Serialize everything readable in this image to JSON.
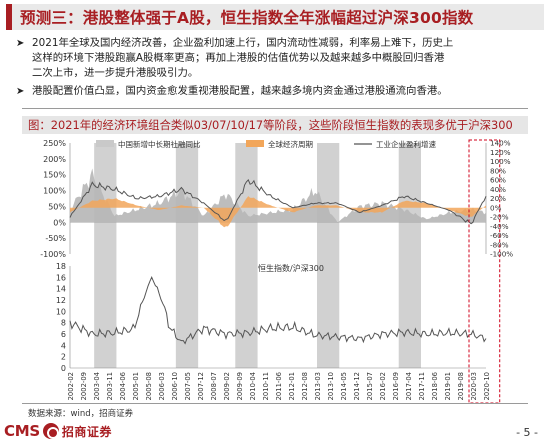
{
  "slide": {
    "title": "预测三：港股整体强于A股，恒生指数全年涨幅超过沪深300指数",
    "bullets": [
      {
        "lines": [
          "2021年全球及国内经济改善，企业盈利加速上行，国内流动性减弱，利率易上难下，历史上",
          "这样的环境下港股跑赢A股概率更高；再加上港股的估值优势以及越来越多中概股回归香港",
          "二次上市，进一步提升港股吸引力。"
        ]
      },
      {
        "lines": [
          "港股配置价值凸显，国内资金愈发重视港股配置，越来越多境内资金通过港股通流向香港。"
        ]
      }
    ],
    "bullet_icon": "arrow-right-icon",
    "chart_title": "图：2021年的经济环境组合类似03/07/10/17等阶段，这些阶段恒生指数的表现多优于沪深300",
    "source": "数据来源：wind，招商证券",
    "page_number": "- 5 -",
    "logo": {
      "text": "CMS",
      "name": "招商证券",
      "icon": "cms-emblem-icon"
    },
    "colors": {
      "accent": "#a81e22",
      "grey_band": "#c9c9c9",
      "orange_band": "#f2a65a",
      "area": "#b6b6b6",
      "line": "#555555",
      "highlight": "#d0021b"
    }
  },
  "chart_data": [
    {
      "type": "area",
      "legend": [
        "中国新增中长期社融同比",
        "全球经济周期",
        "工业企业盈利增速"
      ],
      "legend_placement": "top",
      "y_left_ticks": [
        "250%",
        "200%",
        "150%",
        "100%",
        "50%",
        "0%",
        "-50%",
        "-100%"
      ],
      "y_left_range": [
        -100,
        250
      ],
      "y_right_ticks": [
        "140%",
        "120%",
        "100%",
        "80%",
        "60%",
        "40%",
        "20%",
        "0%",
        "-20%",
        "-40%",
        "-60%",
        "-80%",
        "-100%"
      ],
      "y_right_range": [
        -100,
        140
      ],
      "shaded_periods": [
        [
          "2003-03",
          "2004-03"
        ],
        [
          "2006-11",
          "2007-11"
        ],
        [
          "2009-07",
          "2010-07"
        ],
        [
          "2013-03",
          "2014-03"
        ],
        [
          "2016-11",
          "2017-11"
        ]
      ],
      "highlight_period": [
        "2020-03",
        "2020-12"
      ],
      "x": [
        "2002-02",
        "2003-02",
        "2004-02",
        "2005-02",
        "2006-02",
        "2007-02",
        "2008-02",
        "2009-02",
        "2010-02",
        "2011-02",
        "2012-02",
        "2013-02",
        "2014-02",
        "2015-02",
        "2016-02",
        "2017-02",
        "2018-02",
        "2019-02",
        "2020-02",
        "2020-10"
      ],
      "series": [
        {
          "name": "中国新增中长期社融同比",
          "values": [
            40,
            150,
            20,
            40,
            60,
            100,
            20,
            90,
            20,
            30,
            40,
            100,
            0,
            50,
            60,
            40,
            10,
            30,
            40,
            30
          ]
        },
        {
          "name": "全球经济周期",
          "values": [
            -10,
            15,
            20,
            5,
            -5,
            5,
            0,
            -45,
            25,
            5,
            -10,
            5,
            5,
            -10,
            -10,
            15,
            10,
            -5,
            -20,
            5
          ]
        },
        {
          "name": "工业企业盈利增速",
          "values": [
            -20,
            50,
            40,
            20,
            25,
            40,
            10,
            -30,
            60,
            25,
            0,
            10,
            10,
            -10,
            5,
            25,
            10,
            -5,
            -35,
            25
          ]
        }
      ]
    },
    {
      "type": "line",
      "series": [
        {
          "name": "恒生指数/沪深300",
          "values": [
            8.0,
            6.0,
            6.2,
            7.0,
            9.5,
            4.5,
            7.0,
            6.0,
            6.2,
            7.0,
            7.2,
            5.8,
            5.5,
            5.2,
            6.0,
            6.3,
            6.0,
            6.2,
            6.0,
            5.2
          ]
        }
      ],
      "y_ticks": [
        "18",
        "16",
        "14",
        "12",
        "10",
        "8",
        "6",
        "4",
        "2",
        "0"
      ],
      "y_range": [
        0,
        18
      ],
      "peaks": [
        {
          "x": "2005-10",
          "y": 16
        }
      ],
      "x_labels": [
        "2002-02",
        "2002-09",
        "2003-04",
        "2003-11",
        "2004-06",
        "2005-01",
        "2005-08",
        "2006-03",
        "2006-10",
        "2007-05",
        "2007-12",
        "2008-07",
        "2009-02",
        "2009-09",
        "2010-04",
        "2010-11",
        "2011-06",
        "2012-01",
        "2012-08",
        "2013-03",
        "2013-10",
        "2014-05",
        "2014-12",
        "2015-07",
        "2016-02",
        "2016-09",
        "2017-04",
        "2017-11",
        "2018-06",
        "2019-01",
        "2019-08",
        "2020-03",
        "2020-10"
      ]
    }
  ]
}
